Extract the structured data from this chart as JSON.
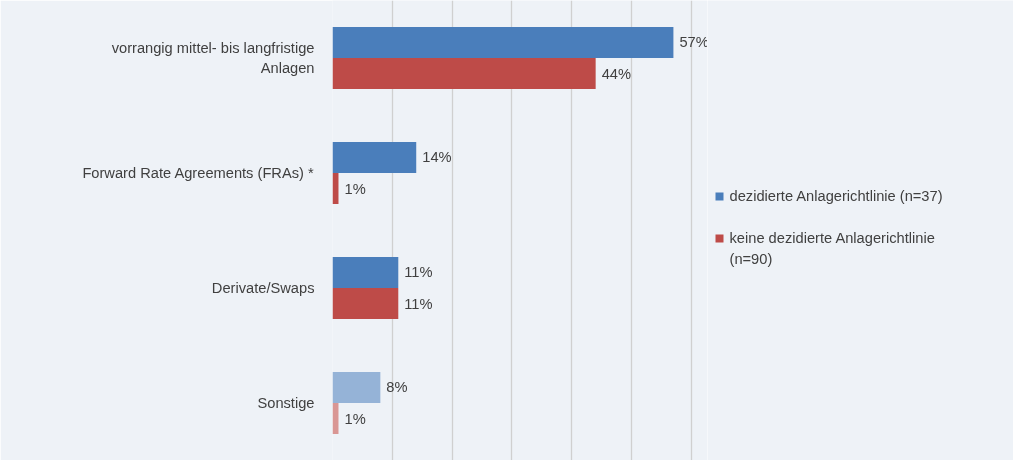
{
  "chart_data": {
    "type": "bar",
    "orientation": "horizontal",
    "categories": [
      "vorrangig mittel- bis langfristige Anlagen",
      "Forward Rate Agreements (FRAs) *",
      "Derivate/Swaps",
      "Sonstige"
    ],
    "series": [
      {
        "name": "dezidierte Anlagerichtlinie (n=37)",
        "color": "#4a7ebb",
        "colors": [
          "#4a7ebb",
          "#4a7ebb",
          "#4a7ebb",
          "#95b3d7"
        ],
        "values": [
          57,
          14,
          11,
          8
        ],
        "value_labels": [
          "57%",
          "14%",
          "11%",
          "8%"
        ]
      },
      {
        "name": "keine dezidierte Anlagerichtlinie (n=90)",
        "color": "#be4b48",
        "colors": [
          "#be4b48",
          "#be4b48",
          "#be4b48",
          "#d99694"
        ],
        "values": [
          44,
          1,
          11,
          1
        ],
        "value_labels": [
          "44%",
          "1%",
          "11%",
          "1%"
        ]
      }
    ],
    "grid": "x",
    "legend": "right",
    "tick_labels": "y"
  }
}
